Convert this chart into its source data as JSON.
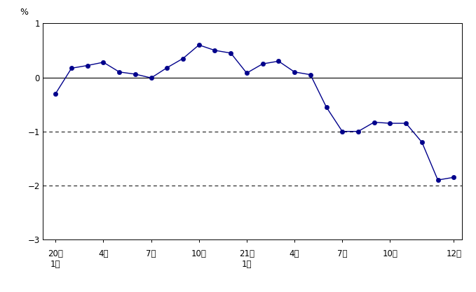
{
  "title": "",
  "ylabel": "%",
  "ylim": [
    -3,
    1
  ],
  "yticks": [
    -3,
    -2,
    -1,
    0,
    1
  ],
  "dashed_lines": [
    -1,
    -2
  ],
  "line_color": "#00008B",
  "marker_color": "#00008B",
  "marker_size": 4.5,
  "line_width": 1.0,
  "values": [
    -0.3,
    0.17,
    0.22,
    0.28,
    0.1,
    0.06,
    -0.01,
    0.18,
    0.35,
    0.6,
    0.5,
    0.45,
    0.08,
    0.25,
    0.3,
    0.1,
    0.05,
    -0.55,
    -1.0,
    -1.0,
    -0.83,
    -0.85,
    -0.85,
    -1.2,
    -1.9,
    -1.85
  ],
  "n_points": 26,
  "x_tick_indices": [
    0,
    3,
    6,
    9,
    12,
    15,
    18,
    21,
    25
  ],
  "x_tick_labels_line1": [
    "年",
    "",
    "",
    "",
    "年",
    "",
    "",
    "",
    ""
  ],
  "x_tick_labels_line2": [
    "1月",
    "4月",
    "7月",
    "10月",
    "1月",
    "4月",
    "7月",
    "10月",
    "12月"
  ],
  "x_tick_year_prefix": [
    "20",
    "",
    "",
    "",
    "21",
    "",
    "",
    "",
    ""
  ],
  "background_color": "#ffffff",
  "spine_color": "#000000"
}
